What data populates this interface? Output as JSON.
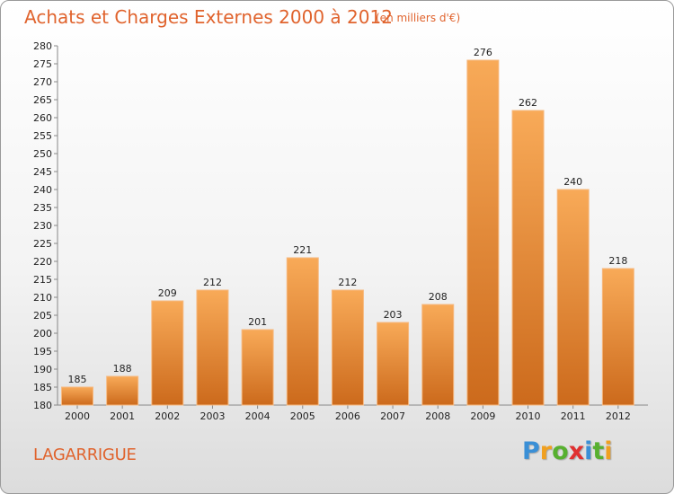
{
  "header": {
    "title": "Achats et Charges Externes 2000 à 2012",
    "subtitle": "(en milliers d'€)"
  },
  "footer": {
    "commune": "LAGARRIGUE",
    "logo_letters": [
      {
        "char": "P",
        "color": "#3a8fd6"
      },
      {
        "char": "r",
        "color": "#f0a020"
      },
      {
        "char": "o",
        "color": "#58b030"
      },
      {
        "char": "x",
        "color": "#e03030"
      },
      {
        "char": "i",
        "color": "#3a8fd6"
      },
      {
        "char": "t",
        "color": "#58b030"
      },
      {
        "char": "i",
        "color": "#f0a020"
      }
    ]
  },
  "chart_data": {
    "type": "bar",
    "title": "Achats et Charges Externes 2000 à 2012",
    "subtitle": "(en milliers d'€)",
    "xlabel": "",
    "ylabel": "",
    "categories": [
      "2000",
      "2001",
      "2002",
      "2003",
      "2004",
      "2005",
      "2006",
      "2007",
      "2008",
      "2009",
      "2010",
      "2011",
      "2012"
    ],
    "values": [
      185,
      188,
      209,
      212,
      201,
      221,
      212,
      203,
      208,
      276,
      262,
      240,
      218
    ],
    "ylim": [
      180,
      280
    ],
    "yticks": [
      180,
      185,
      190,
      195,
      200,
      205,
      210,
      215,
      220,
      225,
      230,
      235,
      240,
      245,
      250,
      255,
      260,
      265,
      270,
      275,
      280
    ],
    "grid": false,
    "legend": "none",
    "colors": {
      "bar_top": "#f8aa58",
      "bar_bottom": "#cc6a1c",
      "bar_edge": "#f6b980",
      "axis": "#888888",
      "text_accent": "#e0632d"
    }
  }
}
